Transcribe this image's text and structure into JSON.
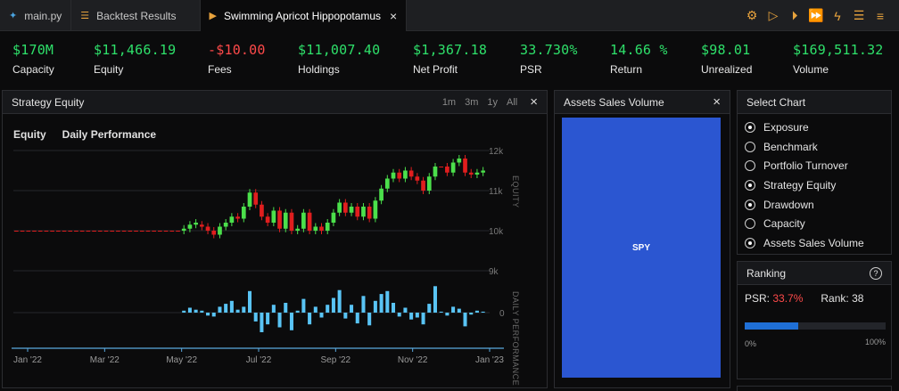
{
  "tabs": [
    {
      "label": "main.py",
      "icon": "python-icon",
      "active": false
    },
    {
      "label": "Backtest Results",
      "icon": "list-icon",
      "active": false
    },
    {
      "label": "Swimming Apricot Hippopotamus",
      "icon": "play-icon",
      "active": true
    }
  ],
  "toolbar_icons": [
    "gear-icon",
    "play-icon",
    "run-debug-icon",
    "fast-forward-icon",
    "lightning-icon",
    "stack-icon",
    "menu-icon"
  ],
  "stats": [
    {
      "value": "$170M",
      "label": "Capacity"
    },
    {
      "value": "$11,466.19",
      "label": "Equity"
    },
    {
      "value": "-$10.00",
      "label": "Fees"
    },
    {
      "value": "$11,007.40",
      "label": "Holdings"
    },
    {
      "value": "$1,367.18",
      "label": "Net Profit"
    },
    {
      "value": "33.730%",
      "label": "PSR"
    },
    {
      "value": "14.66 %",
      "label": "Return"
    },
    {
      "value": "$98.01",
      "label": "Unrealized"
    },
    {
      "value": "$169,511.32",
      "label": "Volume"
    }
  ],
  "equity_panel": {
    "title": "Strategy Equity",
    "ranges": [
      "1m",
      "3m",
      "1y",
      "All"
    ],
    "legend": [
      "Equity",
      "Daily Performance"
    ]
  },
  "sales_panel": {
    "title": "Assets Sales Volume",
    "block_label": "SPY"
  },
  "select_chart": {
    "title": "Select Chart",
    "options": [
      {
        "label": "Exposure",
        "selected": true
      },
      {
        "label": "Benchmark",
        "selected": false
      },
      {
        "label": "Portfolio Turnover",
        "selected": false
      },
      {
        "label": "Strategy Equity",
        "selected": true
      },
      {
        "label": "Drawdown",
        "selected": true
      },
      {
        "label": "Capacity",
        "selected": false
      },
      {
        "label": "Assets Sales Volume",
        "selected": true
      }
    ]
  },
  "ranking": {
    "title": "Ranking",
    "psr_label": "PSR:",
    "psr_value": "33.7%",
    "rank_label": "Rank:",
    "rank_value": "38",
    "progress": 0.38,
    "min_label": "0%",
    "max_label": "100%"
  },
  "colors": {
    "up": "#4be04b",
    "down": "#e01e1e",
    "bars": "#59c4f5",
    "accent": "#e8a33d",
    "spy": "#2b56d1",
    "positive": "#2ee06a",
    "negative": "#ff4a4a"
  },
  "chart_data": {
    "type": "candlestick+bar",
    "x_ticks": [
      "Jan '22",
      "Mar '22",
      "May '22",
      "Jul '22",
      "Sep '22",
      "Nov '22",
      "Jan '23"
    ],
    "equity_axis": {
      "label": "EQUITY",
      "ticks": [
        "12k",
        "11k",
        "10k",
        "9k"
      ],
      "ylim": [
        9000,
        12000
      ]
    },
    "performance_axis": {
      "label": "DAILY PERFORMANCE",
      "ticks": [
        "0"
      ]
    },
    "equity_candles": [
      {
        "open": 10000,
        "close": 10000
      },
      {
        "open": 10000,
        "close": 10000
      },
      {
        "open": 10000,
        "close": 10000
      },
      {
        "open": 10000,
        "close": 10000
      },
      {
        "open": 10000,
        "close": 10000
      },
      {
        "open": 10000,
        "close": 10000
      },
      {
        "open": 10000,
        "close": 10000
      },
      {
        "open": 10000,
        "close": 10000
      },
      {
        "open": 10000,
        "close": 10000
      },
      {
        "open": 10000,
        "close": 10000
      },
      {
        "open": 10000,
        "close": 10000
      },
      {
        "open": 10000,
        "close": 10000
      },
      {
        "open": 10000,
        "close": 10000
      },
      {
        "open": 10000,
        "close": 10000
      },
      {
        "open": 10000,
        "close": 10000
      },
      {
        "open": 10000,
        "close": 10000
      },
      {
        "open": 10000,
        "close": 10000
      },
      {
        "open": 10000,
        "close": 10000
      },
      {
        "open": 10000,
        "close": 10000
      },
      {
        "open": 10000,
        "close": 10000
      },
      {
        "open": 10000,
        "close": 10000
      },
      {
        "open": 10000,
        "close": 10000
      },
      {
        "open": 10000,
        "close": 10000
      },
      {
        "open": 10000,
        "close": 10000
      },
      {
        "open": 10000,
        "close": 10000
      },
      {
        "open": 10000,
        "close": 10000
      },
      {
        "open": 10000,
        "close": 10000
      },
      {
        "open": 10000,
        "close": 10000
      },
      {
        "open": 10000,
        "close": 10050
      },
      {
        "open": 10050,
        "close": 10150
      },
      {
        "open": 10150,
        "close": 10200
      },
      {
        "open": 10150,
        "close": 10100
      },
      {
        "open": 10100,
        "close": 10000
      },
      {
        "open": 10000,
        "close": 9900
      },
      {
        "open": 9900,
        "close": 10100
      },
      {
        "open": 10100,
        "close": 10200
      },
      {
        "open": 10200,
        "close": 10350
      },
      {
        "open": 10350,
        "close": 10300
      },
      {
        "open": 10300,
        "close": 10600
      },
      {
        "open": 10600,
        "close": 10950
      },
      {
        "open": 10950,
        "close": 10650
      },
      {
        "open": 10650,
        "close": 10350
      },
      {
        "open": 10350,
        "close": 10200
      },
      {
        "open": 10200,
        "close": 10500
      },
      {
        "open": 10500,
        "close": 10050
      },
      {
        "open": 10050,
        "close": 10450
      },
      {
        "open": 10450,
        "close": 10000
      },
      {
        "open": 10000,
        "close": 10050
      },
      {
        "open": 10050,
        "close": 10450
      },
      {
        "open": 10450,
        "close": 10000
      },
      {
        "open": 10000,
        "close": 10100
      },
      {
        "open": 10100,
        "close": 10000
      },
      {
        "open": 10000,
        "close": 10200
      },
      {
        "open": 10200,
        "close": 10450
      },
      {
        "open": 10450,
        "close": 10700
      },
      {
        "open": 10700,
        "close": 10450
      },
      {
        "open": 10450,
        "close": 10600
      },
      {
        "open": 10600,
        "close": 10350
      },
      {
        "open": 10350,
        "close": 10600
      },
      {
        "open": 10600,
        "close": 10300
      },
      {
        "open": 10300,
        "close": 10750
      },
      {
        "open": 10750,
        "close": 11050
      },
      {
        "open": 11050,
        "close": 11300
      },
      {
        "open": 11300,
        "close": 11450
      },
      {
        "open": 11450,
        "close": 11300
      },
      {
        "open": 11300,
        "close": 11500
      },
      {
        "open": 11500,
        "close": 11350
      },
      {
        "open": 11350,
        "close": 11250
      },
      {
        "open": 11250,
        "close": 11000
      },
      {
        "open": 11000,
        "close": 11350
      },
      {
        "open": 11350,
        "close": 11600
      },
      {
        "open": 11600,
        "close": 11600
      },
      {
        "open": 11600,
        "close": 11450
      },
      {
        "open": 11450,
        "close": 11700
      },
      {
        "open": 11700,
        "close": 11800
      },
      {
        "open": 11800,
        "close": 11450
      },
      {
        "open": 11450,
        "close": 11400
      },
      {
        "open": 11400,
        "close": 11450
      },
      {
        "open": 11450,
        "close": 11500
      }
    ],
    "daily_performance": [
      0,
      0,
      0,
      0,
      0,
      0,
      0,
      0,
      0,
      0,
      0,
      0,
      0,
      0,
      0,
      0,
      0,
      0,
      0,
      0,
      0,
      0,
      0,
      0,
      0,
      0,
      0,
      0,
      0.2,
      0.5,
      0.3,
      0.2,
      -0.3,
      -0.4,
      0.6,
      0.9,
      1.2,
      0.3,
      0.6,
      2.2,
      -0.9,
      -2.0,
      -1.2,
      0.8,
      -1.5,
      1.0,
      -1.8,
      0.2,
      1.4,
      -1.2,
      0.6,
      -0.5,
      0.8,
      1.5,
      2.3,
      -0.6,
      0.8,
      -1.1,
      1.7,
      -1.3,
      1.2,
      1.9,
      2.2,
      1.0,
      -0.4,
      0.5,
      -0.7,
      -0.5,
      -1.2,
      0.9,
      2.7,
      0.1,
      -0.3,
      0.6,
      0.4,
      -1.4,
      -0.2,
      0.2,
      0.1
    ]
  }
}
